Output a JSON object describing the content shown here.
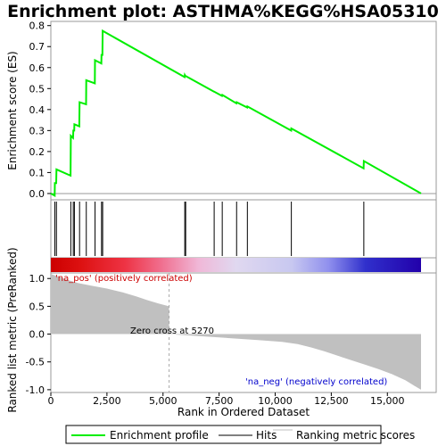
{
  "chart_data": {
    "type": "line",
    "title": "Enrichment plot: ASTHMA%KEGG%HSA05310",
    "xlabel": "Rank in Ordered Dataset",
    "ylabel_top": "Enrichment score (ES)",
    "ylabel_bottom": "Ranked list metric (PreRanked)",
    "xlim": [
      0,
      16500
    ],
    "es_ylim": [
      -0.03,
      0.82
    ],
    "metric_ylim": [
      -1.05,
      1.1
    ],
    "x_ticks": [
      {
        "value": 0,
        "label": "0"
      },
      {
        "value": 2500,
        "label": "2,500"
      },
      {
        "value": 5000,
        "label": "5,000"
      },
      {
        "value": 7500,
        "label": "7,500"
      },
      {
        "value": 10000,
        "label": "10,000"
      },
      {
        "value": 12500,
        "label": "12,500"
      },
      {
        "value": 15000,
        "label": "15,000"
      }
    ],
    "es_ticks": [
      {
        "value": 0.0,
        "label": "0.0"
      },
      {
        "value": 0.1,
        "label": "0.1"
      },
      {
        "value": 0.2,
        "label": "0.2"
      },
      {
        "value": 0.3,
        "label": "0.3"
      },
      {
        "value": 0.4,
        "label": "0.4"
      },
      {
        "value": 0.5,
        "label": "0.5"
      },
      {
        "value": 0.6,
        "label": "0.6"
      },
      {
        "value": 0.7,
        "label": "0.7"
      },
      {
        "value": 0.8,
        "label": "0.8"
      }
    ],
    "metric_ticks": [
      {
        "value": 1.0,
        "label": "1.0"
      },
      {
        "value": 0.5,
        "label": "0.5"
      },
      {
        "value": 0.0,
        "label": "0.0"
      },
      {
        "value": -0.5,
        "label": "-0.5"
      },
      {
        "value": -1.0,
        "label": "-1.0"
      }
    ],
    "hits": [
      180,
      250,
      890,
      1000,
      1050,
      1280,
      1580,
      1970,
      2260,
      2310,
      5970,
      6010,
      7280,
      7640,
      8280,
      8760,
      10720,
      13950
    ],
    "es_profile": [
      [
        0,
        0.0
      ],
      [
        170,
        -0.01
      ],
      [
        180,
        0.05
      ],
      [
        240,
        0.05
      ],
      [
        250,
        0.115
      ],
      [
        880,
        0.085
      ],
      [
        890,
        0.275
      ],
      [
        990,
        0.265
      ],
      [
        1000,
        0.3
      ],
      [
        1040,
        0.3
      ],
      [
        1050,
        0.33
      ],
      [
        1270,
        0.32
      ],
      [
        1280,
        0.435
      ],
      [
        1570,
        0.425
      ],
      [
        1580,
        0.54
      ],
      [
        1960,
        0.525
      ],
      [
        1970,
        0.635
      ],
      [
        2250,
        0.62
      ],
      [
        2260,
        0.66
      ],
      [
        2300,
        0.66
      ],
      [
        2310,
        0.775
      ],
      [
        5960,
        0.555
      ],
      [
        5970,
        0.565
      ],
      [
        6000,
        0.56
      ],
      [
        6010,
        0.56
      ],
      [
        7270,
        0.485
      ],
      [
        7280,
        0.485
      ],
      [
        7630,
        0.465
      ],
      [
        7640,
        0.47
      ],
      [
        8270,
        0.43
      ],
      [
        8280,
        0.435
      ],
      [
        8750,
        0.41
      ],
      [
        8760,
        0.415
      ],
      [
        10710,
        0.3
      ],
      [
        10720,
        0.31
      ],
      [
        13940,
        0.12
      ],
      [
        13950,
        0.155
      ],
      [
        16500,
        0.0
      ]
    ],
    "metric_profile": [
      [
        0,
        1.08
      ],
      [
        300,
        1.04
      ],
      [
        700,
        0.98
      ],
      [
        1200,
        0.92
      ],
      [
        1800,
        0.87
      ],
      [
        2500,
        0.82
      ],
      [
        3200,
        0.75
      ],
      [
        3800,
        0.68
      ],
      [
        4300,
        0.61
      ],
      [
        4800,
        0.55
      ],
      [
        5270,
        0.5
      ],
      [
        5271,
        0.0
      ],
      [
        7200,
        -0.05
      ],
      [
        8200,
        -0.08
      ],
      [
        9300,
        -0.11
      ],
      [
        10300,
        -0.14
      ],
      [
        11000,
        -0.18
      ],
      [
        11600,
        -0.24
      ],
      [
        12200,
        -0.31
      ],
      [
        12800,
        -0.39
      ],
      [
        13400,
        -0.47
      ],
      [
        14000,
        -0.55
      ],
      [
        14600,
        -0.63
      ],
      [
        15200,
        -0.72
      ],
      [
        15800,
        -0.83
      ],
      [
        16200,
        -0.93
      ],
      [
        16500,
        -1.0
      ]
    ],
    "zero_cross_rank": 5270,
    "annotations": {
      "zero_cross": "Zero cross at 5270",
      "pos": "'na_pos' (positively correlated)",
      "neg": "'na_neg' (negatively correlated)"
    },
    "legend": [
      {
        "name": "Enrichment profile",
        "color": "#00ee00"
      },
      {
        "name": "Hits",
        "color": "#000000"
      },
      {
        "name": "Ranking metric scores",
        "color": "#c0c0c0"
      }
    ],
    "colors": {
      "es_line": "#00ee00",
      "metric_fill": "#c0c0c0",
      "pos_text": "#cc0000",
      "neg_text": "#0000cc"
    }
  }
}
